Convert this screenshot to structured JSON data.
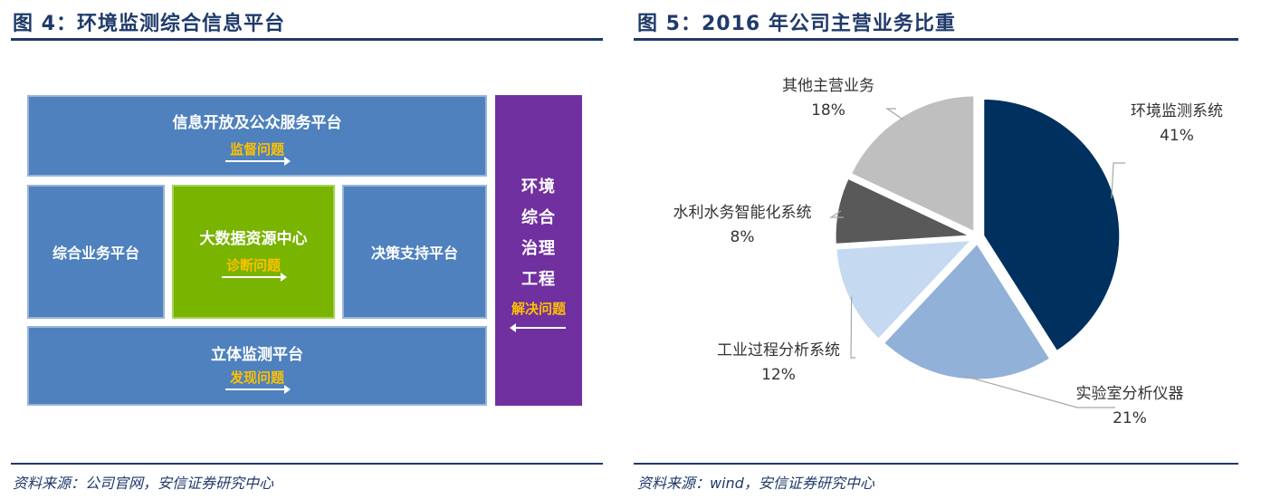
{
  "left": {
    "title": "图 4：环境监测综合信息平台",
    "source": "资料来源：公司官网，安信证券研究中心",
    "diagram": {
      "top_box": {
        "title": "信息开放及公众服务平台",
        "issue": "监督问题"
      },
      "left_box": {
        "title": "综合业务平台"
      },
      "center_box": {
        "title": "大数据资源中心",
        "issue": "诊断问题"
      },
      "right_box": {
        "title": "决策支持平台"
      },
      "bottom_box": {
        "title": "立体监测平台",
        "issue": "发现问题"
      },
      "side_box": {
        "lines": [
          "环境",
          "综合",
          "治理",
          "工程"
        ],
        "issue": "解决问题"
      }
    }
  },
  "right": {
    "title": "图 5：2016 年公司主营业务比重",
    "source": "资料来源：wind，安信证券研究中心"
  },
  "chart_data": {
    "type": "pie",
    "title": "2016 年公司主营业务比重",
    "series": [
      {
        "name": "环境监测系统",
        "value": 41,
        "label": "41%",
        "color": "#00305e"
      },
      {
        "name": "实验室分析仪器",
        "value": 21,
        "label": "21%",
        "color": "#92b1d8"
      },
      {
        "name": "工业过程分析系统",
        "value": 12,
        "label": "12%",
        "color": "#c5d9f1"
      },
      {
        "name": "水利水务智能化系统",
        "value": 8,
        "label": "8%",
        "color": "#595959"
      },
      {
        "name": "其他主营业务",
        "value": 18,
        "label": "18%",
        "color": "#bfbfbf"
      }
    ],
    "start_angle_deg": 0,
    "direction": "clockwise",
    "legend": "none"
  }
}
